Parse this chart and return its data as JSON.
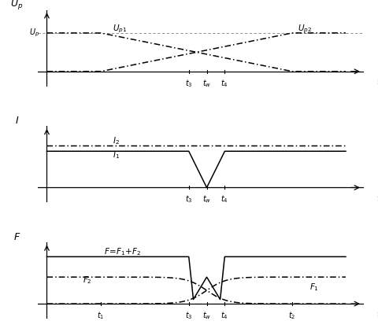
{
  "background_color": "#ffffff",
  "t1": 0.18,
  "t2": 0.82,
  "t3": 0.475,
  "tw": 0.535,
  "t4": 0.595,
  "Up_high": 0.72,
  "I1_level": 0.68,
  "I2_level": 0.78,
  "F_high": 0.88,
  "F_mid": 0.5,
  "F_low": 0.08
}
